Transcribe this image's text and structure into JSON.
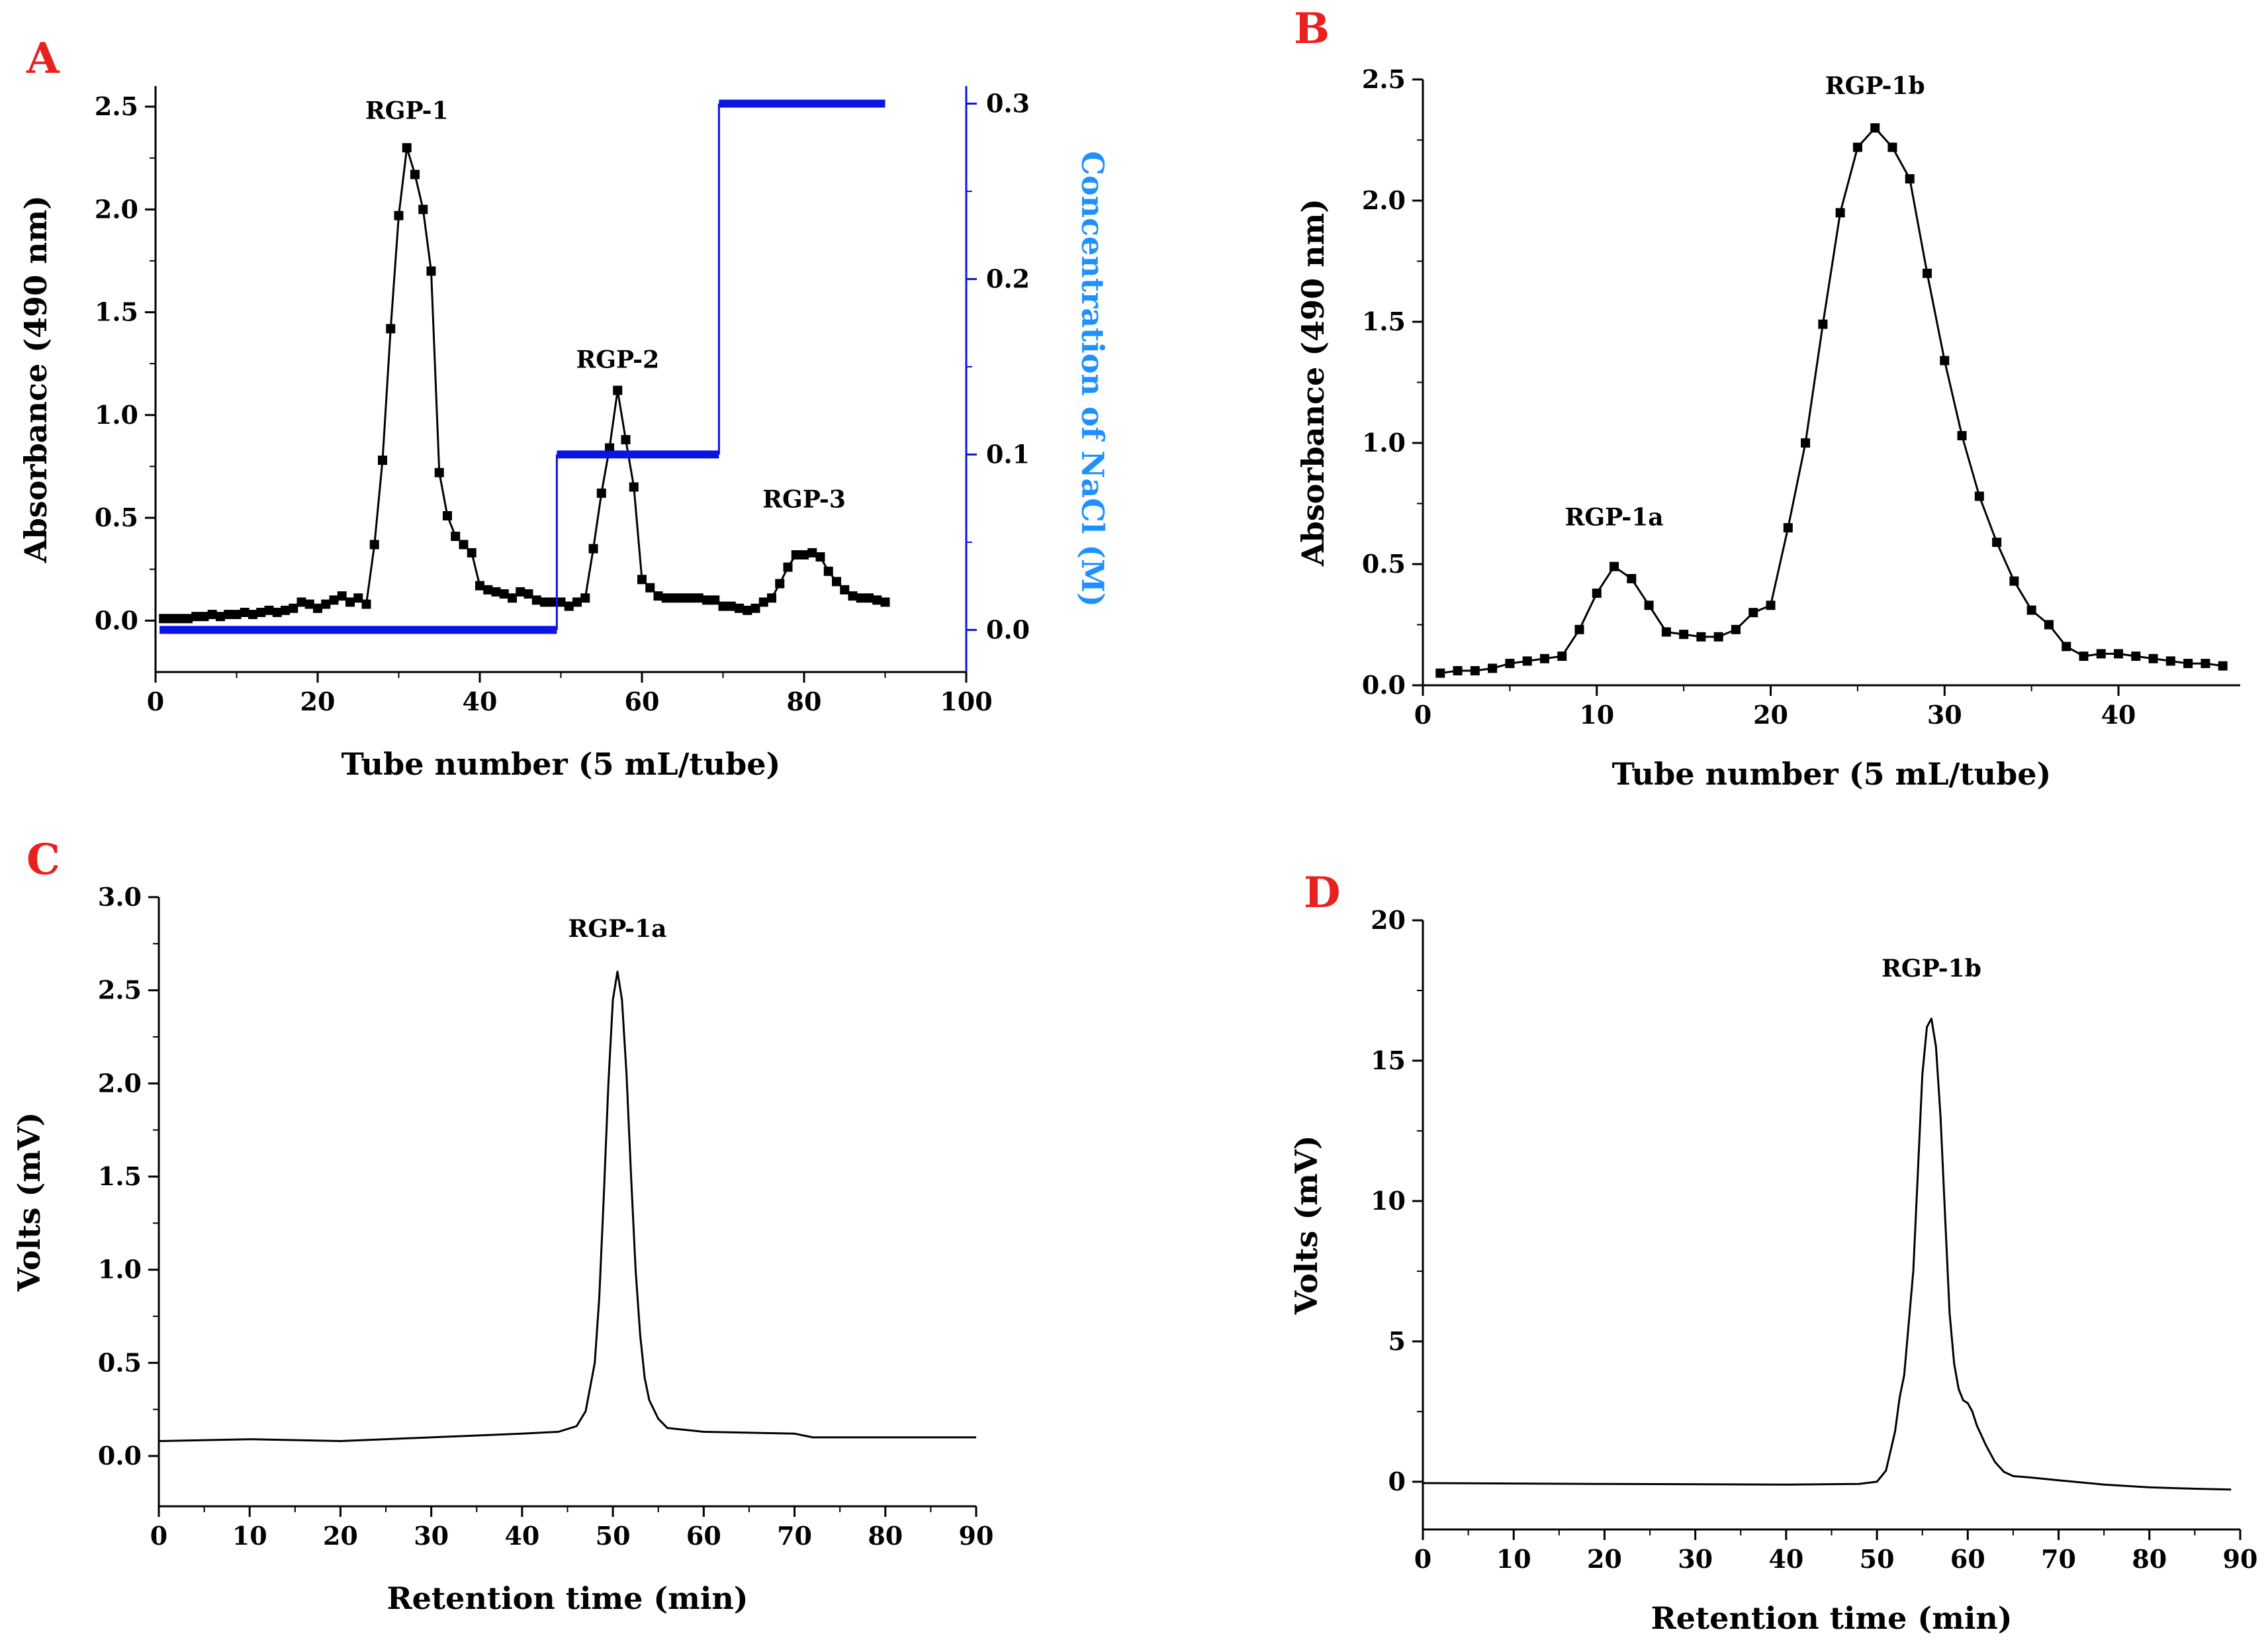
{
  "colors": {
    "ink": "#000000",
    "panel_letter": "#e8211e",
    "nacl_line": "#0a14e6",
    "nacl_axis_label": "#1e90ff"
  },
  "chart_data": [
    {
      "panel": "A",
      "type": "line",
      "title": "",
      "peak_labels": [
        {
          "text": "RGP-1",
          "x": 31,
          "y": 2.44
        },
        {
          "text": "RGP-2",
          "x": 57,
          "y": 1.23
        },
        {
          "text": "RGP-3",
          "x": 80,
          "y": 0.55
        }
      ],
      "xlabel": "Tube number (5 mL/tube)",
      "ylabel": "Absorbance (490 nm)",
      "y2label": "Concentration of NaCl (M)",
      "xlim": [
        0,
        100
      ],
      "ylim": [
        -0.25,
        2.6
      ],
      "y2lim": [
        -0.024,
        0.31
      ],
      "xticks": [
        0,
        20,
        40,
        60,
        80,
        100
      ],
      "yticks": [
        0.0,
        0.5,
        1.0,
        1.5,
        2.0,
        2.5
      ],
      "y2ticks": [
        0.0,
        0.1,
        0.2,
        0.3
      ],
      "series": [
        {
          "name": "Absorbance",
          "axis": "left",
          "marker": "square",
          "x": [
            1,
            2,
            3,
            4,
            5,
            6,
            7,
            8,
            9,
            10,
            11,
            12,
            13,
            14,
            15,
            16,
            17,
            18,
            19,
            20,
            21,
            22,
            23,
            24,
            25,
            26,
            27,
            28,
            29,
            30,
            31,
            32,
            33,
            34,
            35,
            36,
            37,
            38,
            39,
            40,
            41,
            42,
            43,
            44,
            45,
            46,
            47,
            48,
            49,
            50,
            51,
            52,
            53,
            54,
            55,
            56,
            57,
            58,
            59,
            60,
            61,
            62,
            63,
            64,
            65,
            66,
            67,
            68,
            69,
            70,
            71,
            72,
            73,
            74,
            75,
            76,
            77,
            78,
            79,
            80,
            81,
            82,
            83,
            84,
            85,
            86,
            87,
            88,
            89,
            90
          ],
          "y": [
            0.01,
            0.01,
            0.01,
            0.01,
            0.02,
            0.02,
            0.03,
            0.02,
            0.03,
            0.03,
            0.04,
            0.03,
            0.04,
            0.05,
            0.04,
            0.05,
            0.06,
            0.09,
            0.08,
            0.06,
            0.08,
            0.1,
            0.12,
            0.09,
            0.11,
            0.08,
            0.37,
            0.78,
            1.42,
            1.97,
            2.3,
            2.17,
            2.0,
            1.7,
            0.72,
            0.51,
            0.41,
            0.37,
            0.33,
            0.17,
            0.15,
            0.14,
            0.13,
            0.11,
            0.14,
            0.13,
            0.1,
            0.09,
            0.09,
            0.09,
            0.07,
            0.09,
            0.11,
            0.35,
            0.62,
            0.84,
            1.12,
            0.88,
            0.65,
            0.2,
            0.16,
            0.12,
            0.11,
            0.11,
            0.11,
            0.11,
            0.11,
            0.1,
            0.1,
            0.07,
            0.07,
            0.06,
            0.05,
            0.06,
            0.09,
            0.11,
            0.18,
            0.26,
            0.32,
            0.32,
            0.33,
            0.31,
            0.24,
            0.19,
            0.15,
            0.12,
            0.11,
            0.11,
            0.1,
            0.09
          ]
        },
        {
          "name": "NaCl",
          "axis": "right",
          "style": "step",
          "x": [
            0.5,
            49.5,
            49.5,
            49.5,
            50,
            69.5,
            69.5,
            70,
            90
          ],
          "y": [
            0,
            0,
            0,
            0.1,
            0.1,
            0.1,
            0.3,
            0.3,
            0.3
          ]
        }
      ]
    },
    {
      "panel": "B",
      "type": "line",
      "title": "",
      "peak_labels": [
        {
          "text": "RGP-1a",
          "x": 11,
          "y": 0.66
        },
        {
          "text": "RGP-1b",
          "x": 26,
          "y": 2.44
        }
      ],
      "xlabel": "Tube number (5 mL/tube)",
      "ylabel": "Absorbance (490 nm)",
      "xlim": [
        0,
        47
      ],
      "ylim": [
        0.0,
        2.5
      ],
      "xticks": [
        0,
        10,
        20,
        30,
        40
      ],
      "yticks": [
        0.0,
        0.5,
        1.0,
        1.5,
        2.0,
        2.5
      ],
      "series": [
        {
          "name": "Absorbance",
          "marker": "square",
          "x": [
            1,
            2,
            3,
            4,
            5,
            6,
            7,
            8,
            9,
            10,
            11,
            12,
            13,
            14,
            15,
            16,
            17,
            18,
            19,
            20,
            21,
            22,
            23,
            24,
            25,
            26,
            27,
            28,
            29,
            30,
            31,
            32,
            33,
            34,
            35,
            36,
            37,
            38,
            39,
            40,
            41,
            42,
            43,
            44,
            45,
            46
          ],
          "y": [
            0.05,
            0.06,
            0.06,
            0.07,
            0.09,
            0.1,
            0.11,
            0.12,
            0.23,
            0.38,
            0.49,
            0.44,
            0.33,
            0.22,
            0.21,
            0.2,
            0.2,
            0.23,
            0.3,
            0.33,
            0.65,
            1.0,
            1.49,
            1.95,
            2.22,
            2.3,
            2.22,
            2.09,
            1.7,
            1.34,
            1.03,
            0.78,
            0.59,
            0.43,
            0.31,
            0.25,
            0.16,
            0.12,
            0.13,
            0.13,
            0.12,
            0.11,
            0.1,
            0.09,
            0.09,
            0.08
          ]
        }
      ]
    },
    {
      "panel": "C",
      "type": "line",
      "title": "RGP-1a",
      "xlabel": "Retention time (min)",
      "ylabel": "Volts (mV)",
      "xlim": [
        0,
        90
      ],
      "ylim": [
        -0.27,
        3.0
      ],
      "xticks": [
        0,
        10,
        20,
        30,
        40,
        50,
        60,
        70,
        80,
        90
      ],
      "yticks": [
        0.0,
        0.5,
        1.0,
        1.5,
        2.0,
        2.5,
        3.0
      ],
      "series": [
        {
          "name": "Signal",
          "x": [
            0,
            10,
            20,
            30,
            40,
            44,
            46,
            47,
            48,
            48.5,
            49,
            49.5,
            50,
            50.5,
            51,
            51.5,
            52,
            52.5,
            53,
            53.5,
            54,
            55,
            56,
            58,
            60,
            70,
            72,
            80,
            90
          ],
          "y": [
            0.08,
            0.09,
            0.08,
            0.1,
            0.12,
            0.13,
            0.16,
            0.24,
            0.5,
            0.85,
            1.4,
            2.0,
            2.45,
            2.6,
            2.45,
            2.05,
            1.5,
            1.0,
            0.65,
            0.42,
            0.3,
            0.2,
            0.15,
            0.14,
            0.13,
            0.12,
            0.1,
            0.1,
            0.1
          ]
        }
      ]
    },
    {
      "panel": "D",
      "type": "line",
      "title": "RGP-1b",
      "xlabel": "Retention time (min)",
      "ylabel": "Volts (mV)",
      "xlim": [
        0,
        90
      ],
      "ylim": [
        -1.7,
        20
      ],
      "xticks": [
        0,
        10,
        20,
        30,
        40,
        50,
        60,
        70,
        80,
        90
      ],
      "yticks": [
        0,
        5,
        10,
        15,
        20
      ],
      "series": [
        {
          "name": "Signal",
          "x": [
            0,
            20,
            40,
            48,
            50,
            51,
            52,
            52.5,
            53,
            54,
            54.5,
            55,
            55.5,
            56,
            56.5,
            57,
            57.5,
            58,
            58.5,
            59,
            59.5,
            60,
            60.5,
            61,
            62,
            63,
            64,
            65,
            67,
            70,
            75,
            80,
            85,
            89
          ],
          "y": [
            -0.05,
            -0.08,
            -0.1,
            -0.08,
            0.0,
            0.4,
            1.8,
            3.0,
            3.8,
            7.5,
            11.0,
            14.5,
            16.2,
            16.5,
            15.5,
            13.0,
            9.5,
            6.0,
            4.2,
            3.3,
            2.9,
            2.8,
            2.5,
            2.0,
            1.3,
            0.7,
            0.35,
            0.2,
            0.15,
            0.05,
            -0.1,
            -0.2,
            -0.25,
            -0.28
          ]
        }
      ]
    }
  ]
}
